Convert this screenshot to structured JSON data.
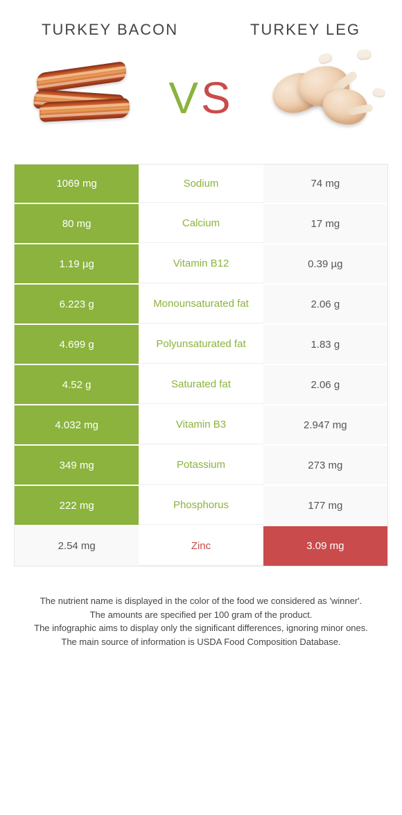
{
  "header": {
    "left_title": "TURKEY BACON",
    "right_title": "TURKEY LEG",
    "vs_v": "V",
    "vs_s": "S"
  },
  "colors": {
    "left_bg": "#8bb33d",
    "right_bg": "#c94b4b",
    "mid_left_text": "#8bb33d",
    "mid_right_text": "#c94b4b",
    "plain_bg": "#f9f9f9",
    "plain_text": "#555555"
  },
  "table": {
    "rows": [
      {
        "nutrient": "Sodium",
        "left": "1069 mg",
        "right": "74 mg",
        "winner": "left"
      },
      {
        "nutrient": "Calcium",
        "left": "80 mg",
        "right": "17 mg",
        "winner": "left"
      },
      {
        "nutrient": "Vitamin B12",
        "left": "1.19 µg",
        "right": "0.39 µg",
        "winner": "left"
      },
      {
        "nutrient": "Monounsaturated fat",
        "left": "6.223 g",
        "right": "2.06 g",
        "winner": "left"
      },
      {
        "nutrient": "Polyunsaturated fat",
        "left": "4.699 g",
        "right": "1.83 g",
        "winner": "left"
      },
      {
        "nutrient": "Saturated fat",
        "left": "4.52 g",
        "right": "2.06 g",
        "winner": "left"
      },
      {
        "nutrient": "Vitamin B3",
        "left": "4.032 mg",
        "right": "2.947 mg",
        "winner": "left"
      },
      {
        "nutrient": "Potassium",
        "left": "349 mg",
        "right": "273 mg",
        "winner": "left"
      },
      {
        "nutrient": "Phosphorus",
        "left": "222 mg",
        "right": "177 mg",
        "winner": "left"
      },
      {
        "nutrient": "Zinc",
        "left": "2.54 mg",
        "right": "3.09 mg",
        "winner": "right"
      }
    ]
  },
  "footnotes": {
    "line1": "The nutrient name is displayed in the color of the food we considered as 'winner'.",
    "line2": "The amounts are specified per 100 gram of the product.",
    "line3": "The infographic aims to display only the significant differences, ignoring minor ones.",
    "line4": "The main source of information is USDA Food Composition Database."
  }
}
